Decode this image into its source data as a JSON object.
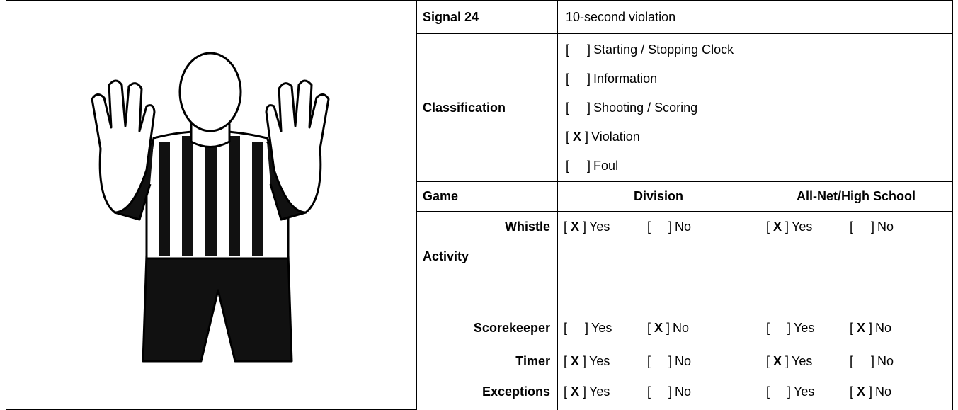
{
  "table": {
    "signal_label": "Signal 24",
    "signal_name": "10-second violation",
    "classification_label": "Classification",
    "classification": [
      {
        "label": "Starting / Stopping Clock"
      },
      {
        "label": "Information"
      },
      {
        "label": "Shooting / Scoring"
      },
      {
        "mark": "X",
        "label": "Violation"
      },
      {
        "label": "Foul"
      }
    ],
    "game_label": "Game",
    "columns": [
      "Division",
      "All-Net/High School"
    ],
    "rows": [
      {
        "label": "Whistle",
        "cells": [
          [
            {
              "mark": "X",
              "label": "Yes"
            },
            {
              "label": "No"
            }
          ],
          [
            {
              "mark": "X",
              "label": "Yes"
            },
            {
              "label": "No"
            }
          ]
        ]
      },
      {
        "label": "Activity"
      },
      {
        "label": "Scorekeeper",
        "cells": [
          [
            {
              "label": "Yes"
            },
            {
              "mark": "X",
              "label": "No"
            }
          ],
          [
            {
              "label": "Yes"
            },
            {
              "mark": "X",
              "label": "No"
            }
          ]
        ]
      },
      {
        "label": "Timer",
        "cells": [
          [
            {
              "mark": "X",
              "label": "Yes"
            },
            {
              "label": "No"
            }
          ],
          [
            {
              "mark": "X",
              "label": "Yes"
            },
            {
              "label": "No"
            }
          ]
        ]
      },
      {
        "label": "Exceptions",
        "cells": [
          [
            {
              "mark": "X",
              "label": "Yes"
            },
            {
              "label": "No"
            }
          ],
          [
            {
              "label": "Yes"
            },
            {
              "mark": "X",
              "label": "No"
            }
          ]
        ]
      }
    ]
  }
}
